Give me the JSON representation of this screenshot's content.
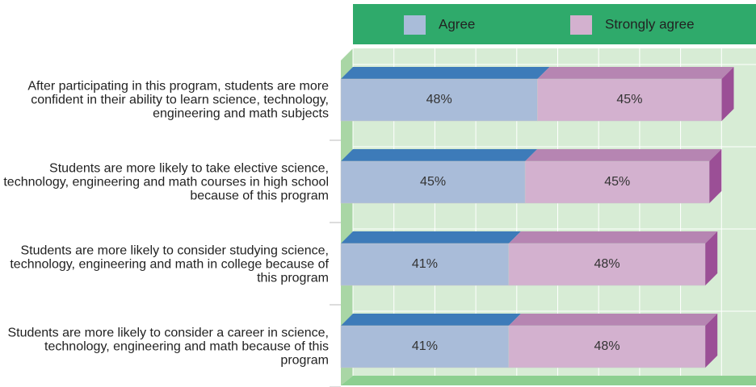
{
  "chart_data": {
    "type": "stacked_bar_horizontal",
    "categories": [
      "After participating in this program, students are more confident in their ability to learn science, technology, engineering and math subjects",
      "Students are more likely to take elective science, technology, engineering and math courses in high school because of this program",
      "Students are more likely to consider studying science, technology, engineering and math in college because of this program",
      "Students are more likely to consider a career in science, technology, engineering and math because of this program"
    ],
    "series": [
      {
        "name": "Agree",
        "color": "#a9bcd9",
        "values": [
          48,
          45,
          41,
          41
        ],
        "value_labels": [
          "48%",
          "45%",
          "41%",
          "41%"
        ]
      },
      {
        "name": "Strongly agree",
        "color": "#d3b1cf",
        "values": [
          45,
          45,
          48,
          48
        ],
        "value_labels": [
          "45%",
          "45%",
          "48%",
          "48%"
        ]
      }
    ],
    "xlim": [
      0,
      100
    ],
    "xticks": [
      0,
      10,
      20,
      30,
      40,
      50,
      60,
      70,
      80,
      90,
      100
    ],
    "grid": true,
    "legend": "top"
  }
}
